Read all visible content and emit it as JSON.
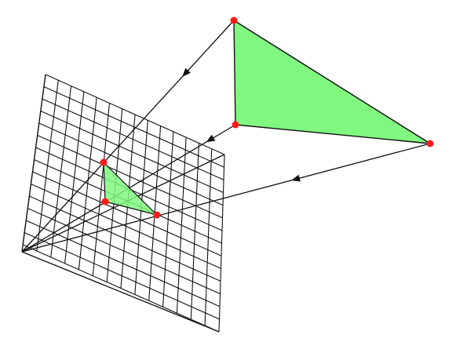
{
  "colors": {
    "background": "#ffffff",
    "stroke": "#111111",
    "triangle_fill": "#80f880",
    "vertex_fill": "#ff1a1a"
  },
  "diagram": {
    "grid_divisions": 14,
    "objects": [
      "source-triangle",
      "projected-triangle",
      "image-plane-grid",
      "projection-rays",
      "frustum-edges",
      "vertex-points"
    ]
  }
}
